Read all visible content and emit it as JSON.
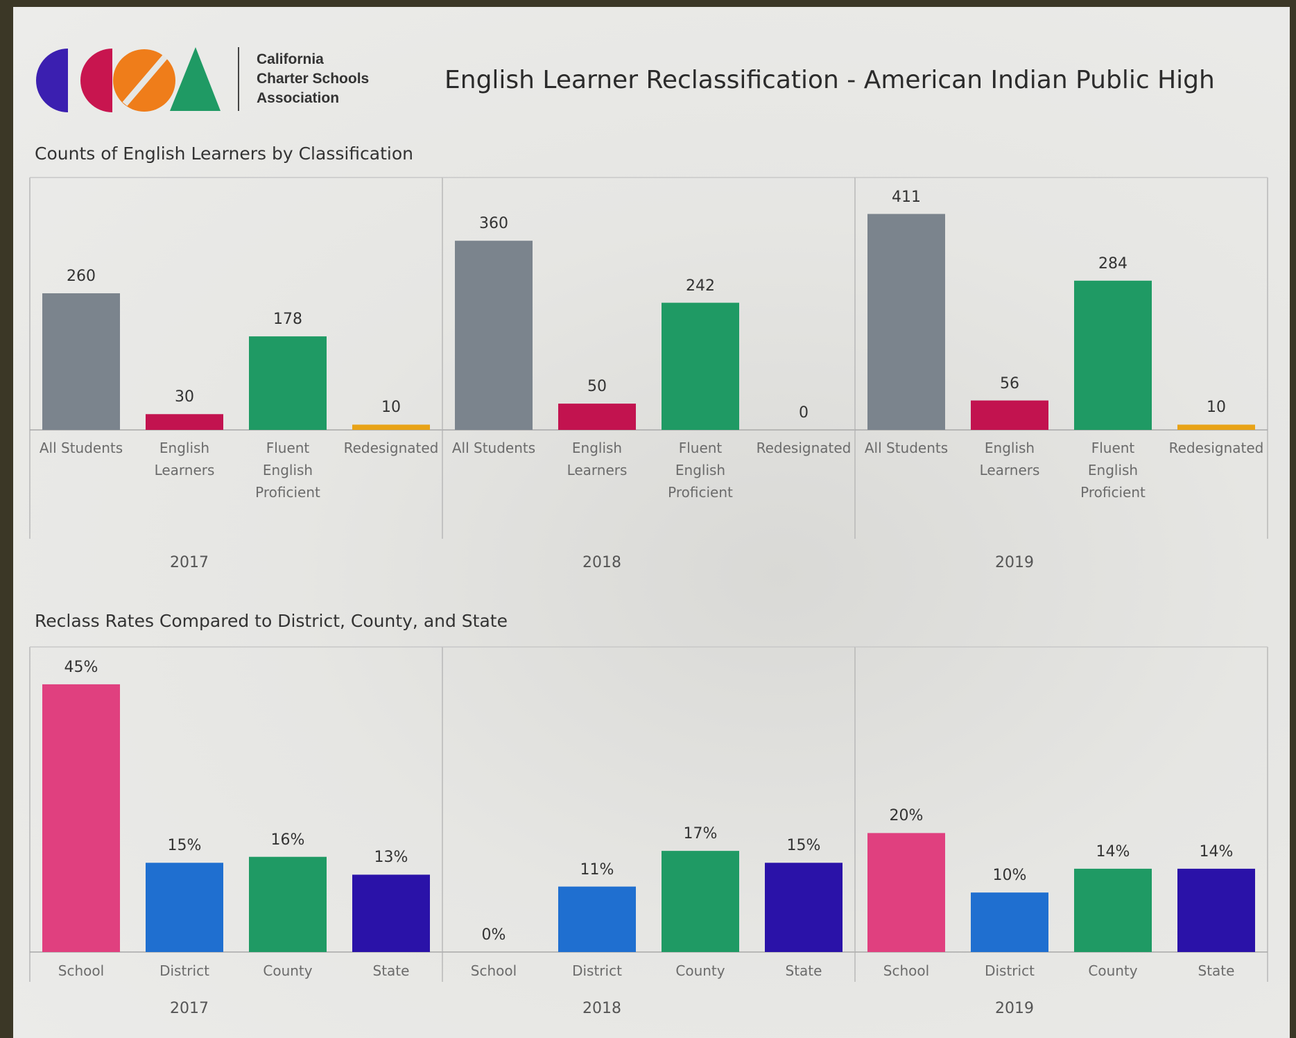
{
  "header": {
    "org_lines": [
      "California",
      "Charter Schools",
      "Association"
    ],
    "title": "English Learner Reclassification - American Indian Public High"
  },
  "chart_data": [
    {
      "type": "bar",
      "title": "Counts of English Learners by Classification",
      "categories": [
        "All Students",
        "English Learners",
        "Fluent English Proficient",
        "Redesignated"
      ],
      "colors": [
        "#7b848d",
        "#c2134f",
        "#1f9a64",
        "#e8a317"
      ],
      "ylim": [
        0,
        450
      ],
      "panels": [
        {
          "label": "2017",
          "values": [
            260,
            30,
            178,
            10
          ]
        },
        {
          "label": "2018",
          "values": [
            360,
            50,
            242,
            0
          ]
        },
        {
          "label": "2019",
          "values": [
            411,
            56,
            284,
            10
          ]
        }
      ]
    },
    {
      "type": "bar",
      "title": "Reclass Rates Compared to District, County, and State",
      "categories": [
        "School",
        "District",
        "County",
        "State"
      ],
      "colors": [
        "#e0407f",
        "#1f6fd0",
        "#1f9a64",
        "#2a12a8"
      ],
      "ylim": [
        0,
        50
      ],
      "panels": [
        {
          "label": "2017",
          "values": [
            45,
            15,
            16,
            13
          ],
          "value_labels": [
            "45%",
            "15%",
            "16%",
            "13%"
          ]
        },
        {
          "label": "2018",
          "values": [
            0,
            11,
            17,
            15
          ],
          "value_labels": [
            "0%",
            "11%",
            "17%",
            "15%"
          ]
        },
        {
          "label": "2019",
          "values": [
            20,
            10,
            14,
            14
          ],
          "value_labels": [
            "20%",
            "10%",
            "14%",
            "14%"
          ]
        }
      ]
    }
  ]
}
